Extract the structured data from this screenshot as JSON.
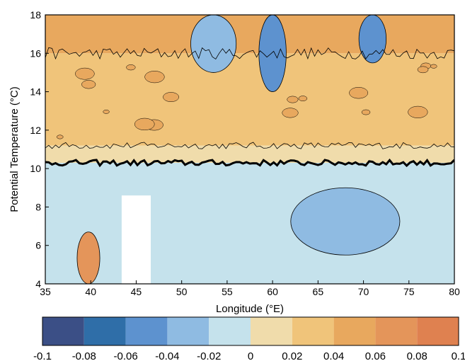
{
  "chart_data": {
    "type": "heatmap",
    "subtype": "filled-contour",
    "title": "",
    "xlabel": "Longitude (°E)",
    "ylabel": "Potential Temperature (°C)",
    "xlim": [
      35,
      80
    ],
    "ylim": [
      4,
      18
    ],
    "xticks": [
      35,
      40,
      45,
      50,
      55,
      60,
      65,
      70,
      75,
      80
    ],
    "yticks": [
      4,
      6,
      8,
      10,
      12,
      14,
      16,
      18
    ],
    "zero_contour_bold": true,
    "colorbar": {
      "levels": [
        -0.1,
        -0.08,
        -0.06,
        -0.04,
        -0.02,
        0,
        0.02,
        0.04,
        0.06,
        0.08,
        0.1
      ],
      "tick_labels": [
        "-0.1",
        "-0.08",
        "-0.06",
        "-0.04",
        "-0.02",
        "0",
        "0.02",
        "0.04",
        "0.06",
        "0.08",
        "0.1"
      ],
      "colors": [
        "#3b4f86",
        "#2f6ea8",
        "#5d92cf",
        "#8fbbe2",
        "#c5e2ec",
        "#f0dcab",
        "#f0c47a",
        "#e8a85e",
        "#e4955a",
        "#df8150"
      ]
    },
    "bands": [
      {
        "theta_min": 4,
        "theta_max": 10.3,
        "level_bin": [
          -0.02,
          0
        ]
      },
      {
        "theta_min": 10.3,
        "theta_max": 11.2,
        "level_bin": [
          0,
          0.02
        ]
      },
      {
        "theta_min": 11.2,
        "theta_max": 16,
        "level_bin": [
          0.02,
          0.04
        ]
      },
      {
        "theta_min": 16,
        "theta_max": 18,
        "level_bin": [
          0.04,
          0.06
        ]
      }
    ],
    "features": [
      {
        "lon": [
          43.4,
          46.6
        ],
        "theta": [
          4,
          8.6
        ],
        "kind": "no-data"
      },
      {
        "lon": [
          58.5,
          61.5
        ],
        "theta": [
          14,
          18
        ],
        "level_bin": [
          -0.06,
          -0.04
        ]
      },
      {
        "lon": [
          51,
          56
        ],
        "theta": [
          15,
          18
        ],
        "level_bin": [
          -0.04,
          -0.02
        ]
      },
      {
        "lon": [
          69.5,
          72.5
        ],
        "theta": [
          15.5,
          18
        ],
        "level_bin": [
          -0.06,
          -0.04
        ]
      },
      {
        "lon": [
          62,
          74
        ],
        "theta": [
          5.5,
          9
        ],
        "level_bin": [
          -0.04,
          -0.02
        ]
      },
      {
        "lon": [
          38.5,
          41
        ],
        "theta": [
          4,
          6.7
        ],
        "level_bin": [
          0.06,
          0.08
        ]
      }
    ]
  }
}
